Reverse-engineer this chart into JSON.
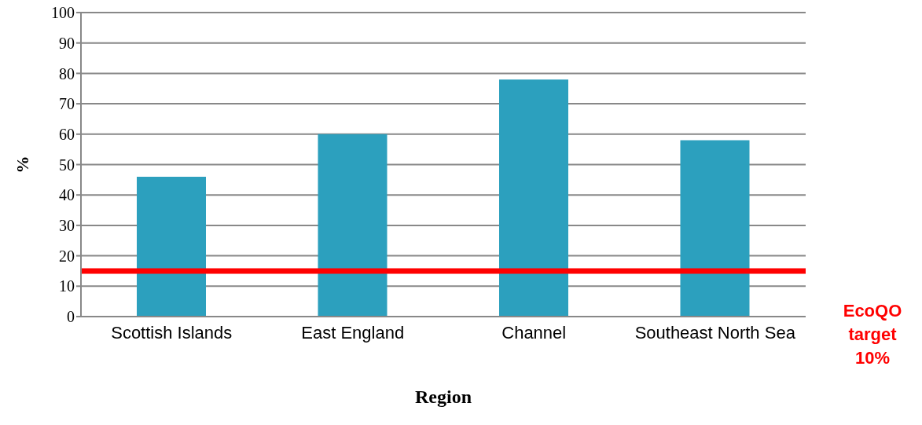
{
  "chart_data": {
    "type": "bar",
    "xlabel": "Region",
    "ylabel": "%",
    "categories": [
      "Scottish Islands",
      "East England",
      "Channel",
      "Southeast North Sea"
    ],
    "values": [
      46,
      60,
      78,
      58
    ],
    "color": "#2ca0be",
    "ylim": [
      0,
      100
    ],
    "yticks": [
      0,
      10,
      20,
      30,
      40,
      50,
      60,
      70,
      80,
      90,
      100
    ],
    "grid": "y",
    "ref_lines": [
      {
        "axis": "y",
        "value": 15,
        "label": "EcoQO target 10%",
        "color": "#ff0000",
        "line_style": "solid"
      }
    ]
  }
}
